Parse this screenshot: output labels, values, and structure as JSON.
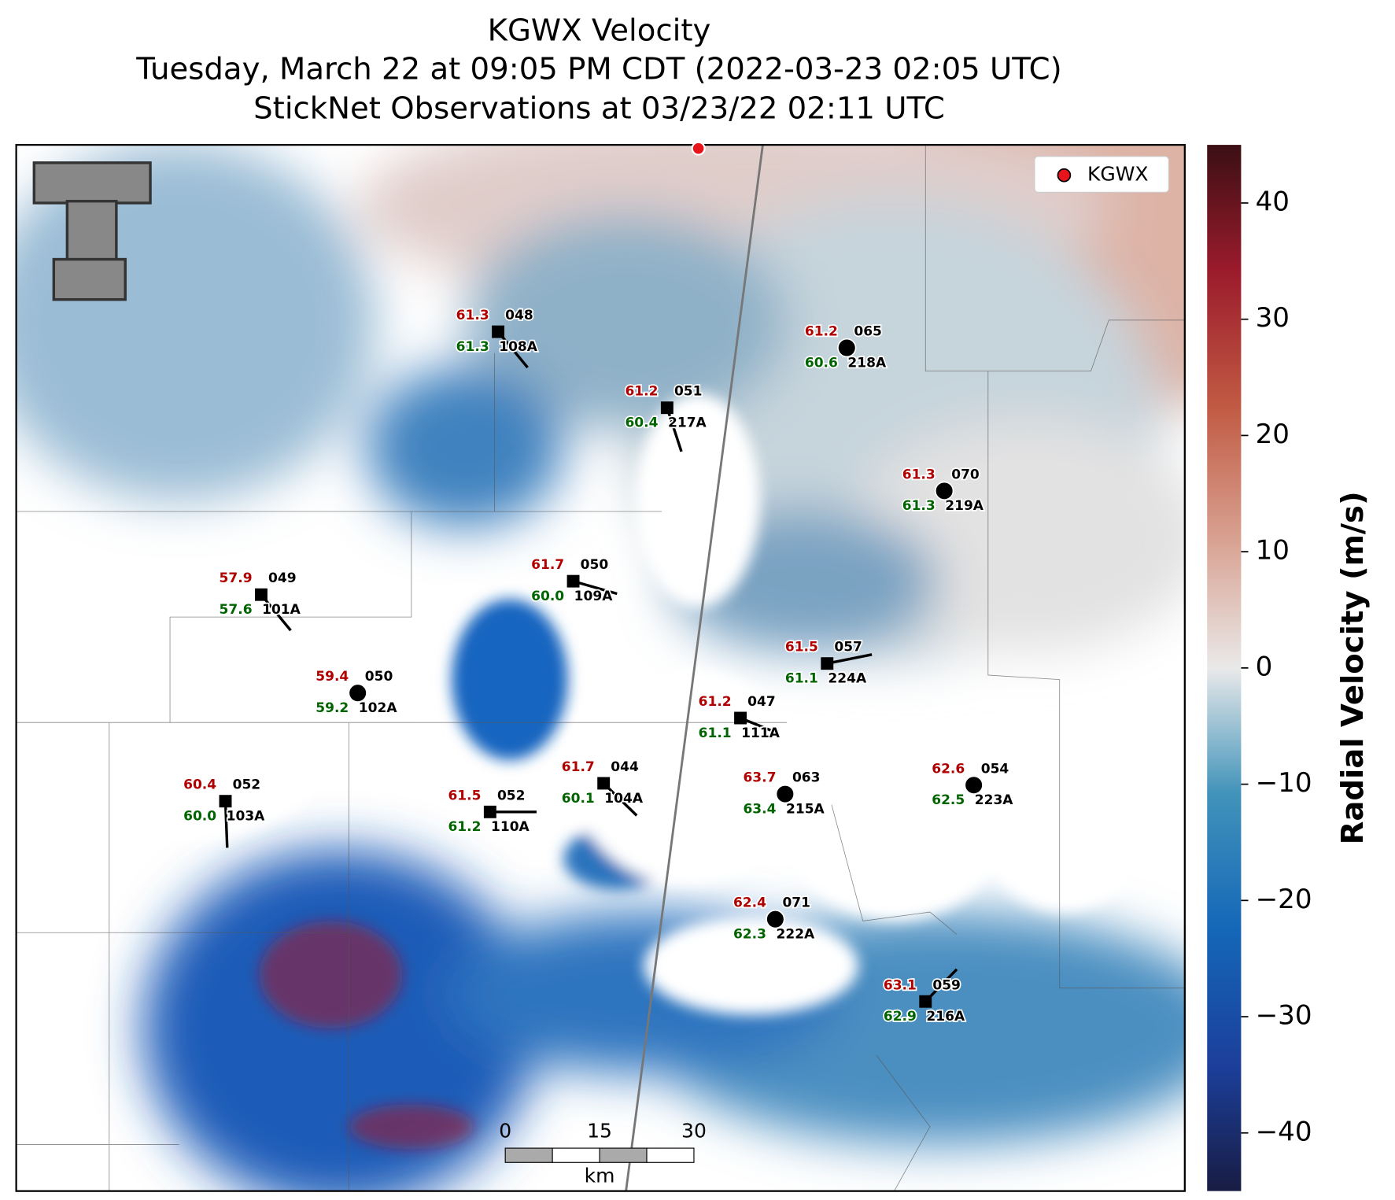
{
  "header": {
    "title": "KGWX Velocity",
    "subtitle": "Tuesday, March 22 at 09:05 PM CDT (2022-03-23 02:05 UTC)",
    "observations": "StickNet Observations at 03/23/22 02:11 UTC"
  },
  "legend": {
    "label": "KGWX",
    "color": "#e8141b"
  },
  "colorbar": {
    "label": "Radial Velocity (m/s)",
    "lim": [
      -45,
      45
    ],
    "ticks": [
      {
        "value": -40,
        "label": "−40"
      },
      {
        "value": -30,
        "label": "−30"
      },
      {
        "value": -20,
        "label": "−20"
      },
      {
        "value": -10,
        "label": "−10"
      },
      0,
      10,
      20,
      30,
      40
    ]
  },
  "scale_bar": {
    "ticks": [
      0,
      15,
      30
    ],
    "unit": "km"
  },
  "stations": [
    {
      "id": "108A",
      "temperature": "61.3",
      "dewpoint": "61.3",
      "wind_direction": "048",
      "marker": "square"
    },
    {
      "id": "218A",
      "temperature": "61.2",
      "dewpoint": "60.6",
      "wind_direction": "065",
      "marker": "circle"
    },
    {
      "id": "217A",
      "temperature": "61.2",
      "dewpoint": "60.4",
      "wind_direction": "051",
      "marker": "square"
    },
    {
      "id": "219A",
      "temperature": "61.3",
      "dewpoint": "61.3",
      "wind_direction": "070",
      "marker": "circle"
    },
    {
      "id": "109A",
      "temperature": "61.7",
      "dewpoint": "60.0",
      "wind_direction": "050",
      "marker": "square"
    },
    {
      "id": "101A",
      "temperature": "57.9",
      "dewpoint": "57.6",
      "wind_direction": "049",
      "marker": "square"
    },
    {
      "id": "224A",
      "temperature": "61.5",
      "dewpoint": "61.1",
      "wind_direction": "057",
      "marker": "square"
    },
    {
      "id": "102A",
      "temperature": "59.4",
      "dewpoint": "59.2",
      "wind_direction": "050",
      "marker": "circle"
    },
    {
      "id": "111A",
      "temperature": "61.2",
      "dewpoint": "61.1",
      "wind_direction": "047",
      "marker": "square"
    },
    {
      "id": "104A",
      "temperature": "61.7",
      "dewpoint": "60.1",
      "wind_direction": "044",
      "marker": "square"
    },
    {
      "id": "215A",
      "temperature": "63.7",
      "dewpoint": "63.4",
      "wind_direction": "063",
      "marker": "circle"
    },
    {
      "id": "223A",
      "temperature": "62.6",
      "dewpoint": "62.5",
      "wind_direction": "054",
      "marker": "circle"
    },
    {
      "id": "103A",
      "temperature": "60.4",
      "dewpoint": "60.0",
      "wind_direction": "052",
      "marker": "square"
    },
    {
      "id": "110A",
      "temperature": "61.5",
      "dewpoint": "61.2",
      "wind_direction": "052",
      "marker": "square"
    },
    {
      "id": "222A",
      "temperature": "62.4",
      "dewpoint": "62.3",
      "wind_direction": "071",
      "marker": "circle"
    },
    {
      "id": "216A",
      "temperature": "63.1",
      "dewpoint": "62.9",
      "wind_direction": "059",
      "marker": "square"
    }
  ]
}
